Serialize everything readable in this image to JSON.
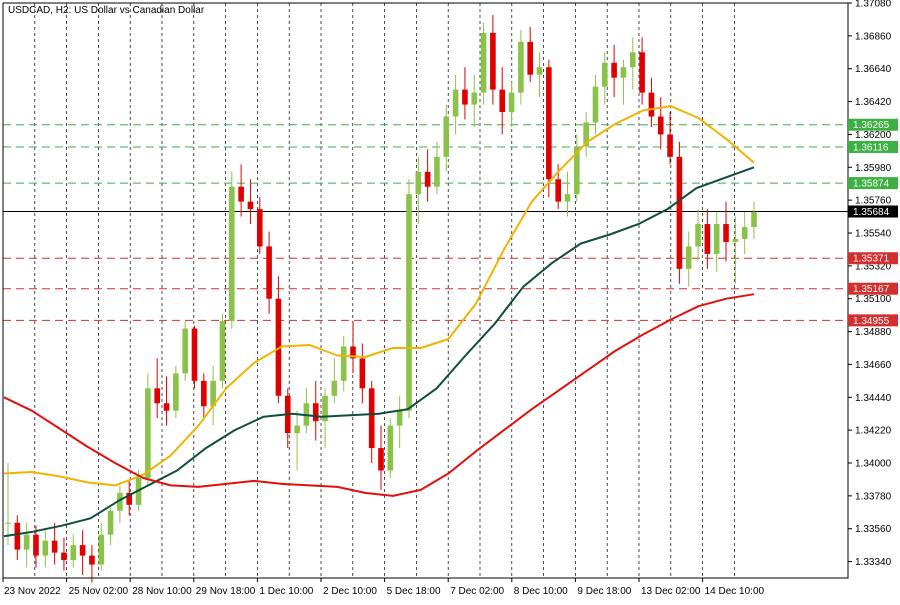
{
  "chart_data": {
    "type": "candlestick",
    "title": "USDCAD, H2:  US Dollar vs Canadian Dollar",
    "ylim": [
      1.3323,
      1.3708
    ],
    "y_ticks": [
      "1.37080",
      "1.36860",
      "1.36640",
      "1.36420",
      "1.36200",
      "1.35980",
      "1.35760",
      "1.35540",
      "1.35320",
      "1.35100",
      "1.34880",
      "1.34660",
      "1.34440",
      "1.34220",
      "1.34000",
      "1.33780",
      "1.33560",
      "1.33340"
    ],
    "x_ticks": [
      "23 Nov 2022",
      "25 Nov 02:00",
      "28 Nov 10:00",
      "29 Nov 18:00",
      "1 Dec 10:00",
      "2 Dec 10:00",
      "5 Dec 18:00",
      "7 Dec 02:00",
      "8 Dec 10:00",
      "9 Dec 18:00",
      "13 Dec 02:00",
      "14 Dec 10:00"
    ],
    "grid": true,
    "bull_color": "#8BC34A",
    "bear_color": "#E00000",
    "current_price": {
      "label": "1.35684",
      "value": 1.35684,
      "color": "#000000"
    },
    "resistance_levels": [
      {
        "label": "1.36265",
        "value": 1.36265,
        "color": "#3CB043"
      },
      {
        "label": "1.36116",
        "value": 1.36116,
        "color": "#3CB043"
      },
      {
        "label": "1.35874",
        "value": 1.35874,
        "color": "#3CB043"
      }
    ],
    "support_levels": [
      {
        "label": "1.35371",
        "value": 1.35371,
        "color": "#D32F2F"
      },
      {
        "label": "1.35167",
        "value": 1.35167,
        "color": "#D32F2F"
      },
      {
        "label": "1.34955",
        "value": 1.34955,
        "color": "#D32F2F"
      }
    ],
    "moving_averages": [
      {
        "color": "#F0B400",
        "values": [
          1.3393,
          1.3394,
          1.3391,
          1.3387,
          1.3385,
          1.3392,
          1.3405,
          1.3425,
          1.345,
          1.3467,
          1.3478,
          1.3479,
          1.3472,
          1.3471,
          1.3477,
          1.3477,
          1.3483,
          1.3507,
          1.3543,
          1.3575,
          1.3596,
          1.3615,
          1.3627,
          1.3636,
          1.3639,
          1.3631,
          1.3617,
          1.3601
        ]
      },
      {
        "color": "#0D4F3C",
        "values": [
          1.3351,
          1.3354,
          1.3358,
          1.3363,
          1.3375,
          1.3385,
          1.3395,
          1.341,
          1.3422,
          1.3431,
          1.3433,
          1.3431,
          1.3432,
          1.3433,
          1.3436,
          1.345,
          1.3472,
          1.3493,
          1.3518,
          1.3534,
          1.3547,
          1.3553,
          1.356,
          1.357,
          1.3584,
          1.3591,
          1.3598
        ]
      },
      {
        "color": "#E01010",
        "values": [
          1.3444,
          1.3435,
          1.3423,
          1.3411,
          1.34,
          1.339,
          1.3385,
          1.3384,
          1.3386,
          1.3388,
          1.3386,
          1.3385,
          1.3384,
          1.338,
          1.3378,
          1.3382,
          1.3393,
          1.3408,
          1.3422,
          1.3436,
          1.3449,
          1.3462,
          1.3475,
          1.3486,
          1.3496,
          1.3505,
          1.351,
          1.3513
        ]
      }
    ],
    "candles": [
      [
        1.336,
        1.34,
        1.3345,
        1.336
      ],
      [
        1.336,
        1.3365,
        1.3335,
        1.3342
      ],
      [
        1.3342,
        1.336,
        1.333,
        1.3352
      ],
      [
        1.3352,
        1.3358,
        1.333,
        1.3338
      ],
      [
        1.3338,
        1.3355,
        1.333,
        1.3348
      ],
      [
        1.3348,
        1.336,
        1.3332,
        1.334
      ],
      [
        1.334,
        1.335,
        1.3328,
        1.3335
      ],
      [
        1.3335,
        1.3352,
        1.333,
        1.3345
      ],
      [
        1.3345,
        1.3355,
        1.3325,
        1.3338
      ],
      [
        1.3338,
        1.3345,
        1.332,
        1.3332
      ],
      [
        1.3332,
        1.336,
        1.3328,
        1.3352
      ],
      [
        1.3352,
        1.337,
        1.3345,
        1.3368
      ],
      [
        1.3368,
        1.3385,
        1.336,
        1.338
      ],
      [
        1.338,
        1.3388,
        1.3365,
        1.3372
      ],
      [
        1.3372,
        1.3395,
        1.3368,
        1.339
      ],
      [
        1.339,
        1.346,
        1.3385,
        1.345
      ],
      [
        1.345,
        1.347,
        1.343,
        1.344
      ],
      [
        1.344,
        1.3458,
        1.3425,
        1.3435
      ],
      [
        1.3435,
        1.3465,
        1.343,
        1.346
      ],
      [
        1.346,
        1.3495,
        1.3455,
        1.349
      ],
      [
        1.349,
        1.3492,
        1.345,
        1.3455
      ],
      [
        1.3455,
        1.346,
        1.343,
        1.3438
      ],
      [
        1.3438,
        1.3465,
        1.3425,
        1.3455
      ],
      [
        1.3455,
        1.35,
        1.345,
        1.3495
      ],
      [
        1.3495,
        1.3595,
        1.349,
        1.3585
      ],
      [
        1.3585,
        1.36,
        1.3565,
        1.3575
      ],
      [
        1.3575,
        1.359,
        1.356,
        1.357
      ],
      [
        1.357,
        1.3578,
        1.354,
        1.3545
      ],
      [
        1.3545,
        1.3555,
        1.35,
        1.351
      ],
      [
        1.351,
        1.3525,
        1.344,
        1.3445
      ],
      [
        1.3445,
        1.345,
        1.341,
        1.342
      ],
      [
        1.342,
        1.3435,
        1.3395,
        1.3425
      ],
      [
        1.3425,
        1.345,
        1.342,
        1.344
      ],
      [
        1.344,
        1.3455,
        1.3415,
        1.3428
      ],
      [
        1.3428,
        1.345,
        1.341,
        1.3445
      ],
      [
        1.3445,
        1.347,
        1.344,
        1.3455
      ],
      [
        1.3455,
        1.3485,
        1.3448,
        1.3478
      ],
      [
        1.3478,
        1.3495,
        1.346,
        1.347
      ],
      [
        1.347,
        1.348,
        1.344,
        1.345
      ],
      [
        1.345,
        1.3455,
        1.34,
        1.341
      ],
      [
        1.341,
        1.3425,
        1.3382,
        1.3395
      ],
      [
        1.3395,
        1.343,
        1.339,
        1.3425
      ],
      [
        1.3425,
        1.3445,
        1.341,
        1.3435
      ],
      [
        1.3435,
        1.359,
        1.343,
        1.358
      ],
      [
        1.358,
        1.3605,
        1.356,
        1.3595
      ],
      [
        1.3595,
        1.361,
        1.3575,
        1.3585
      ],
      [
        1.3585,
        1.3615,
        1.358,
        1.3605
      ],
      [
        1.3605,
        1.364,
        1.3595,
        1.3632
      ],
      [
        1.3632,
        1.366,
        1.362,
        1.365
      ],
      [
        1.365,
        1.3665,
        1.363,
        1.364
      ],
      [
        1.364,
        1.366,
        1.3625,
        1.3648
      ],
      [
        1.3648,
        1.3695,
        1.364,
        1.3688
      ],
      [
        1.3688,
        1.37,
        1.364,
        1.365
      ],
      [
        1.365,
        1.3665,
        1.362,
        1.3635
      ],
      [
        1.3635,
        1.3655,
        1.3625,
        1.3648
      ],
      [
        1.3648,
        1.369,
        1.364,
        1.3682
      ],
      [
        1.3682,
        1.3692,
        1.3655,
        1.366
      ],
      [
        1.366,
        1.3675,
        1.3645,
        1.3665
      ],
      [
        1.3665,
        1.367,
        1.3578,
        1.359
      ],
      [
        1.359,
        1.36,
        1.357,
        1.3575
      ],
      [
        1.3575,
        1.3595,
        1.3565,
        1.358
      ],
      [
        1.358,
        1.362,
        1.3575,
        1.3612
      ],
      [
        1.3612,
        1.3635,
        1.3605,
        1.3628
      ],
      [
        1.3628,
        1.366,
        1.362,
        1.3652
      ],
      [
        1.3652,
        1.3675,
        1.364,
        1.3668
      ],
      [
        1.3668,
        1.368,
        1.3645,
        1.3658
      ],
      [
        1.3658,
        1.367,
        1.364,
        1.3665
      ],
      [
        1.3665,
        1.3685,
        1.365,
        1.3675
      ],
      [
        1.3675,
        1.3685,
        1.364,
        1.3648
      ],
      [
        1.3648,
        1.3658,
        1.3625,
        1.3632
      ],
      [
        1.3632,
        1.3645,
        1.361,
        1.362
      ],
      [
        1.362,
        1.3635,
        1.36,
        1.3605
      ],
      [
        1.3605,
        1.3615,
        1.352,
        1.353
      ],
      [
        1.353,
        1.3555,
        1.3518,
        1.3545
      ],
      [
        1.3545,
        1.357,
        1.3535,
        1.356
      ],
      [
        1.356,
        1.357,
        1.353,
        1.354
      ],
      [
        1.354,
        1.3568,
        1.3528,
        1.356
      ],
      [
        1.356,
        1.3575,
        1.3535,
        1.3548
      ],
      [
        1.3548,
        1.3565,
        1.352,
        1.355
      ],
      [
        1.355,
        1.3568,
        1.354,
        1.3558
      ],
      [
        1.3558,
        1.3575,
        1.355,
        1.3568
      ]
    ]
  }
}
